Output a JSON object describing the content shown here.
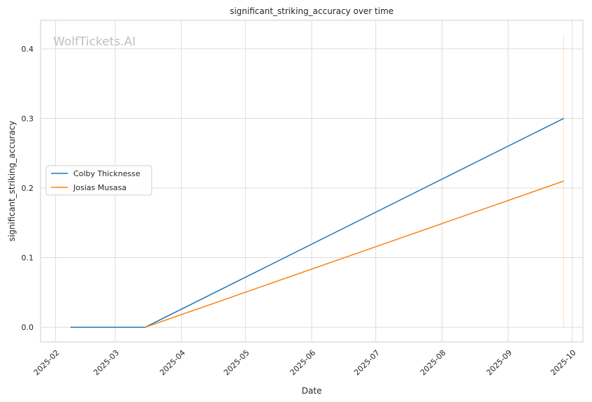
{
  "chart_data": {
    "type": "line",
    "title": "significant_striking_accuracy over time",
    "xlabel": "Date",
    "ylabel": "significant_striking_accuracy",
    "watermark": "WolfTickets.AI",
    "x_ticks": [
      "2025-02-01",
      "2025-03-01",
      "2025-04-01",
      "2025-05-01",
      "2025-06-01",
      "2025-07-01",
      "2025-08-01",
      "2025-09-01",
      "2025-10-01"
    ],
    "x_tick_labels": [
      "2025-02",
      "2025-03",
      "2025-04",
      "2025-05",
      "2025-06",
      "2025-07",
      "2025-08",
      "2025-09",
      "2025-10"
    ],
    "xlim": [
      "2025-01-25",
      "2025-10-06"
    ],
    "y_ticks": [
      0.0,
      0.1,
      0.2,
      0.3,
      0.4
    ],
    "y_tick_labels": [
      "0.0",
      "0.1",
      "0.2",
      "0.3",
      "0.4"
    ],
    "ylim": [
      -0.021,
      0.441
    ],
    "grid": true,
    "legend_position": "center-left",
    "series": [
      {
        "name": "Colby Thicknesse",
        "color": "#1f77b4",
        "points": [
          {
            "x": "2025-02-08",
            "y": 0.0
          },
          {
            "x": "2025-03-15",
            "y": 0.0
          },
          {
            "x": "2025-09-27",
            "y": 0.3
          }
        ]
      },
      {
        "name": "Josias Musasa",
        "color": "#ff7f0e",
        "points": [
          {
            "x": "2025-03-15",
            "y": 0.0
          },
          {
            "x": "2025-09-27",
            "y": 0.21
          }
        ]
      }
    ],
    "vline": {
      "x": "2025-09-27",
      "y_range": [
        0.0,
        0.42
      ],
      "color": "#ff7f0e"
    }
  }
}
